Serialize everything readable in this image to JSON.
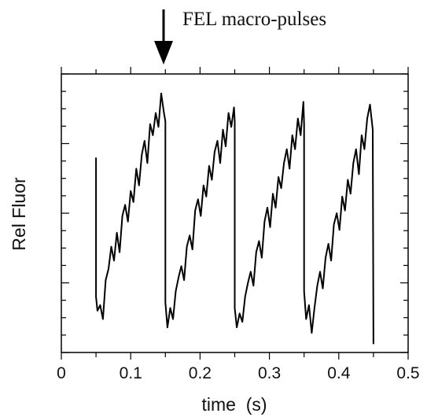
{
  "chart_data": {
    "type": "line",
    "xlabel": "time  (s)",
    "ylabel": "Rel Fluor",
    "xlim": [
      0,
      0.5
    ],
    "x_ticks": [
      "0",
      "0.1",
      "0.2",
      "0.3",
      "0.4",
      "0.5"
    ],
    "y_tick_labels": "none",
    "grid": false,
    "legend": "none",
    "annotation": {
      "text": "FEL macro-pulses",
      "arrow_at_x": 0.145
    },
    "series": [
      {
        "color": "#000000",
        "x": [
          0.05,
          0.05,
          0.052,
          0.056,
          0.06,
          0.064,
          0.068,
          0.072,
          0.076,
          0.08,
          0.084,
          0.088,
          0.092,
          0.096,
          0.1,
          0.104,
          0.108,
          0.112,
          0.116,
          0.12,
          0.124,
          0.128,
          0.132,
          0.136,
          0.14,
          0.144,
          0.148,
          0.15,
          0.15,
          0.153,
          0.157,
          0.161,
          0.165,
          0.169,
          0.173,
          0.177,
          0.181,
          0.185,
          0.189,
          0.193,
          0.197,
          0.201,
          0.205,
          0.209,
          0.213,
          0.217,
          0.221,
          0.225,
          0.229,
          0.233,
          0.237,
          0.241,
          0.245,
          0.249,
          0.25,
          0.25,
          0.253,
          0.257,
          0.261,
          0.265,
          0.269,
          0.273,
          0.277,
          0.281,
          0.285,
          0.289,
          0.293,
          0.297,
          0.301,
          0.305,
          0.309,
          0.313,
          0.317,
          0.321,
          0.325,
          0.329,
          0.333,
          0.337,
          0.341,
          0.345,
          0.349,
          0.35,
          0.35,
          0.353,
          0.357,
          0.361,
          0.365,
          0.369,
          0.373,
          0.377,
          0.381,
          0.385,
          0.389,
          0.393,
          0.397,
          0.401,
          0.405,
          0.409,
          0.413,
          0.417,
          0.421,
          0.425,
          0.429,
          0.433,
          0.437,
          0.441,
          0.445,
          0.449,
          0.45
        ],
        "y": [
          0.7,
          0.2,
          0.15,
          0.17,
          0.12,
          0.26,
          0.3,
          0.38,
          0.33,
          0.43,
          0.36,
          0.49,
          0.53,
          0.47,
          0.58,
          0.54,
          0.66,
          0.6,
          0.71,
          0.76,
          0.68,
          0.82,
          0.78,
          0.86,
          0.81,
          0.93,
          0.86,
          0.83,
          0.18,
          0.09,
          0.16,
          0.12,
          0.22,
          0.27,
          0.31,
          0.26,
          0.38,
          0.42,
          0.37,
          0.51,
          0.55,
          0.49,
          0.6,
          0.56,
          0.67,
          0.62,
          0.72,
          0.76,
          0.68,
          0.8,
          0.74,
          0.86,
          0.81,
          0.88,
          0.83,
          0.16,
          0.09,
          0.14,
          0.11,
          0.2,
          0.25,
          0.29,
          0.24,
          0.36,
          0.4,
          0.34,
          0.47,
          0.52,
          0.45,
          0.57,
          0.52,
          0.63,
          0.59,
          0.68,
          0.73,
          0.66,
          0.78,
          0.73,
          0.84,
          0.78,
          0.9,
          0.82,
          0.22,
          0.12,
          0.17,
          0.07,
          0.16,
          0.24,
          0.29,
          0.23,
          0.34,
          0.39,
          0.33,
          0.46,
          0.5,
          0.44,
          0.56,
          0.51,
          0.62,
          0.57,
          0.68,
          0.73,
          0.64,
          0.78,
          0.73,
          0.84,
          0.89,
          0.8,
          0.03
        ]
      }
    ]
  }
}
